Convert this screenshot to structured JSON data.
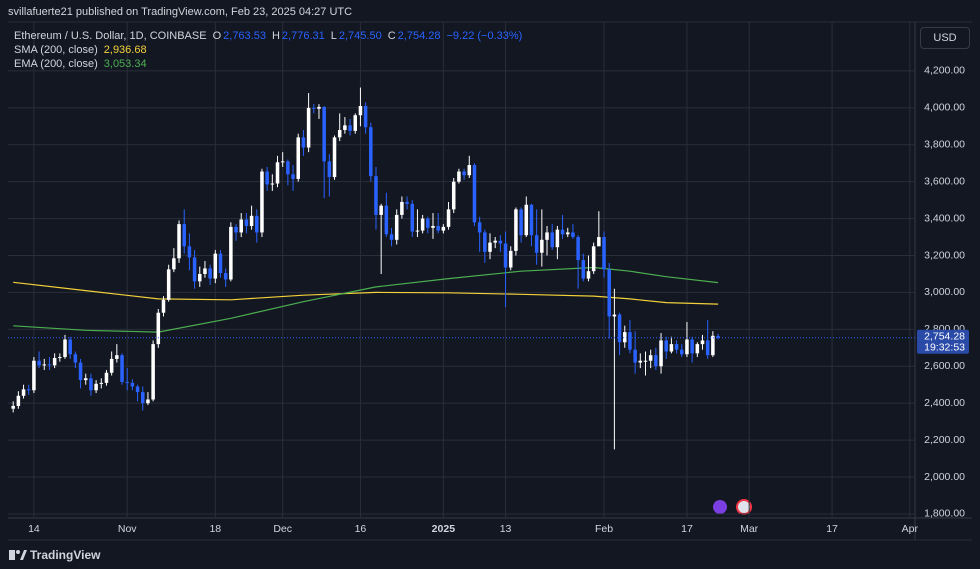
{
  "header": {
    "published": "svillafuerte21 published on TradingView.com, Feb 23, 2025 04:27 UTC",
    "symbol": "Ethereum / U.S. Dollar, 1D, COINBASE",
    "ohlc": [
      {
        "key": "O",
        "value": "2,763.53"
      },
      {
        "key": "H",
        "value": "2,776.31"
      },
      {
        "key": "L",
        "value": "2,745.50"
      },
      {
        "key": "C",
        "value": "2,754.28"
      }
    ],
    "change": "−9.22 (−0.33%)"
  },
  "currency": "USD",
  "brand": "TradingView",
  "chart_data": {
    "type": "candlestick",
    "up_color": "#ffffff",
    "down_color": "#2962ff",
    "grid": true,
    "x": [
      "2024-10-10",
      "2024-10-11",
      "2024-10-12",
      "2024-10-13",
      "2024-10-14",
      "2024-10-15",
      "2024-10-16",
      "2024-10-17",
      "2024-10-18",
      "2024-10-19",
      "2024-10-20",
      "2024-10-21",
      "2024-10-22",
      "2024-10-23",
      "2024-10-24",
      "2024-10-25",
      "2024-10-26",
      "2024-10-27",
      "2024-10-28",
      "2024-10-29",
      "2024-10-30",
      "2024-10-31",
      "2024-11-01",
      "2024-11-02",
      "2024-11-03",
      "2024-11-04",
      "2024-11-05",
      "2024-11-06",
      "2024-11-07",
      "2024-11-08",
      "2024-11-09",
      "2024-11-10",
      "2024-11-11",
      "2024-11-12",
      "2024-11-13",
      "2024-11-14",
      "2024-11-15",
      "2024-11-16",
      "2024-11-17",
      "2024-11-18",
      "2024-11-19",
      "2024-11-20",
      "2024-11-21",
      "2024-11-22",
      "2024-11-23",
      "2024-11-24",
      "2024-11-25",
      "2024-11-26",
      "2024-11-27",
      "2024-11-28",
      "2024-11-29",
      "2024-11-30",
      "2024-12-01",
      "2024-12-02",
      "2024-12-03",
      "2024-12-04",
      "2024-12-05",
      "2024-12-06",
      "2024-12-07",
      "2024-12-08",
      "2024-12-09",
      "2024-12-10",
      "2024-12-11",
      "2024-12-12",
      "2024-12-13",
      "2024-12-14",
      "2024-12-15",
      "2024-12-16",
      "2024-12-17",
      "2024-12-18",
      "2024-12-19",
      "2024-12-20",
      "2024-12-21",
      "2024-12-22",
      "2024-12-23",
      "2024-12-24",
      "2024-12-25",
      "2024-12-26",
      "2024-12-27",
      "2024-12-28",
      "2024-12-29",
      "2024-12-30",
      "2024-12-31",
      "2025-01-01",
      "2025-01-02",
      "2025-01-03",
      "2025-01-04",
      "2025-01-05",
      "2025-01-06",
      "2025-01-07",
      "2025-01-08",
      "2025-01-09",
      "2025-01-10",
      "2025-01-11",
      "2025-01-12",
      "2025-01-13",
      "2025-01-14",
      "2025-01-15",
      "2025-01-16",
      "2025-01-17",
      "2025-01-18",
      "2025-01-19",
      "2025-01-20",
      "2025-01-21",
      "2025-01-22",
      "2025-01-23",
      "2025-01-24",
      "2025-01-25",
      "2025-01-26",
      "2025-01-27",
      "2025-01-28",
      "2025-01-29",
      "2025-01-30",
      "2025-01-31",
      "2025-02-01",
      "2025-02-02",
      "2025-02-03",
      "2025-02-04",
      "2025-02-05",
      "2025-02-06",
      "2025-02-07",
      "2025-02-08",
      "2025-02-09",
      "2025-02-10",
      "2025-02-11",
      "2025-02-12",
      "2025-02-13",
      "2025-02-14",
      "2025-02-15",
      "2025-02-16",
      "2025-02-17",
      "2025-02-18",
      "2025-02-19",
      "2025-02-20",
      "2025-02-21",
      "2025-02-22",
      "2025-02-23"
    ],
    "open": [
      2370,
      2385,
      2440,
      2475,
      2470,
      2630,
      2605,
      2610,
      2605,
      2645,
      2650,
      2745,
      2665,
      2620,
      2525,
      2535,
      2470,
      2505,
      2510,
      2565,
      2640,
      2660,
      2515,
      2510,
      2490,
      2460,
      2400,
      2420,
      2720,
      2890,
      2960,
      3125,
      3185,
      3370,
      3250,
      3190,
      3060,
      3100,
      3130,
      3075,
      3210,
      3105,
      3070,
      3355,
      3325,
      3395,
      3360,
      3415,
      3325,
      3655,
      3585,
      3590,
      3705,
      3710,
      3640,
      3615,
      3840,
      3785,
      4000,
      3995,
      4005,
      3710,
      3625,
      3840,
      3880,
      3905,
      3875,
      3960,
      4010,
      3895,
      3630,
      3420,
      3470,
      3315,
      3285,
      3420,
      3490,
      3480,
      3330,
      3335,
      3400,
      3350,
      3360,
      3335,
      3355,
      3450,
      3600,
      3655,
      3635,
      3690,
      3380,
      3325,
      3220,
      3270,
      3280,
      3265,
      3135,
      3225,
      3450,
      3310,
      3475,
      3310,
      3215,
      3285,
      3325,
      3245,
      3340,
      3315,
      3325,
      3300,
      3175,
      3075,
      3115,
      3250,
      3300,
      3125,
      2870,
      2880,
      2730,
      2785,
      2690,
      2620,
      2630,
      2630,
      2660,
      2600,
      2740,
      2680,
      2720,
      2690,
      2665,
      2745,
      2670,
      2720,
      2740,
      2660,
      2763.53
    ],
    "high": [
      2410,
      2465,
      2500,
      2500,
      2650,
      2680,
      2640,
      2650,
      2670,
      2670,
      2770,
      2760,
      2680,
      2640,
      2560,
      2560,
      2525,
      2535,
      2580,
      2680,
      2720,
      2670,
      2590,
      2530,
      2500,
      2490,
      2460,
      2740,
      2910,
      2980,
      3150,
      3240,
      3390,
      3450,
      3320,
      3230,
      3140,
      3170,
      3150,
      3230,
      3230,
      3130,
      3380,
      3370,
      3430,
      3430,
      3470,
      3450,
      3670,
      3680,
      3640,
      3740,
      3760,
      3720,
      3690,
      3860,
      3880,
      4080,
      4020,
      4020,
      4010,
      3750,
      3850,
      3970,
      3950,
      3940,
      3970,
      4110,
      4030,
      3920,
      3680,
      3480,
      3540,
      3350,
      3450,
      3520,
      3520,
      3500,
      3450,
      3420,
      3410,
      3430,
      3430,
      3370,
      3490,
      3620,
      3670,
      3670,
      3740,
      3700,
      3410,
      3340,
      3320,
      3300,
      3310,
      3330,
      3250,
      3460,
      3460,
      3520,
      3480,
      3450,
      3450,
      3360,
      3370,
      3360,
      3420,
      3350,
      3370,
      3310,
      3210,
      3200,
      3270,
      3440,
      3330,
      3160,
      3020,
      2890,
      2820,
      2850,
      2790,
      2670,
      2680,
      2690,
      2700,
      2780,
      2760,
      2760,
      2740,
      2720,
      2840,
      2760,
      2730,
      2770,
      2850,
      2790,
      2776.31
    ],
    "low": [
      2350,
      2370,
      2425,
      2445,
      2455,
      2590,
      2580,
      2580,
      2590,
      2625,
      2640,
      2640,
      2590,
      2480,
      2500,
      2440,
      2455,
      2480,
      2495,
      2550,
      2620,
      2500,
      2470,
      2470,
      2410,
      2360,
      2390,
      2410,
      2700,
      2870,
      2950,
      3110,
      3160,
      3210,
      3120,
      3020,
      3030,
      3080,
      3040,
      3050,
      3080,
      3030,
      3060,
      3280,
      3300,
      3320,
      3340,
      3270,
      3300,
      3550,
      3550,
      3570,
      3680,
      3580,
      3550,
      3600,
      3740,
      3760,
      3970,
      3940,
      3510,
      3520,
      3610,
      3820,
      3860,
      3850,
      3860,
      3900,
      3860,
      3600,
      3340,
      3100,
      3300,
      3250,
      3260,
      3400,
      3450,
      3300,
      3300,
      3320,
      3320,
      3290,
      3320,
      3320,
      3340,
      3430,
      3590,
      3610,
      3620,
      3360,
      3220,
      3160,
      3180,
      3240,
      3220,
      2920,
      3120,
      3200,
      3270,
      3300,
      3250,
      3150,
      3140,
      3200,
      3230,
      3180,
      3290,
      3300,
      3290,
      3020,
      3060,
      3060,
      3100,
      3250,
      3080,
      2750,
      2150,
      2660,
      2700,
      2670,
      2560,
      2590,
      2550,
      2590,
      2580,
      2560,
      2640,
      2670,
      2670,
      2650,
      2650,
      2620,
      2650,
      2690,
      2640,
      2650,
      2745.5
    ],
    "close": [
      2385,
      2440,
      2475,
      2470,
      2630,
      2605,
      2610,
      2605,
      2645,
      2650,
      2745,
      2665,
      2620,
      2525,
      2535,
      2470,
      2505,
      2510,
      2565,
      2640,
      2660,
      2515,
      2510,
      2490,
      2460,
      2400,
      2420,
      2720,
      2890,
      2960,
      3125,
      3185,
      3370,
      3250,
      3190,
      3060,
      3100,
      3130,
      3075,
      3210,
      3105,
      3070,
      3355,
      3325,
      3395,
      3360,
      3415,
      3325,
      3655,
      3585,
      3590,
      3705,
      3710,
      3640,
      3615,
      3840,
      3785,
      4000,
      3995,
      4005,
      3710,
      3625,
      3840,
      3880,
      3905,
      3875,
      3960,
      4010,
      3895,
      3630,
      3420,
      3470,
      3315,
      3285,
      3420,
      3490,
      3480,
      3330,
      3335,
      3400,
      3350,
      3360,
      3335,
      3355,
      3450,
      3600,
      3655,
      3635,
      3690,
      3380,
      3325,
      3220,
      3270,
      3280,
      3265,
      3135,
      3225,
      3450,
      3310,
      3475,
      3310,
      3215,
      3285,
      3325,
      3245,
      3340,
      3315,
      3325,
      3300,
      3175,
      3075,
      3115,
      3250,
      3300,
      3125,
      2870,
      2880,
      2730,
      2785,
      2690,
      2620,
      2630,
      2630,
      2660,
      2600,
      2740,
      2680,
      2720,
      2690,
      2665,
      2745,
      2670,
      2720,
      2740,
      2660,
      2765,
      2754.28
    ],
    "series": [
      {
        "name": "SMA (200, close)",
        "value_label": "2,936.68",
        "color": "#f2d13a",
        "x": [
          "2024-10-10",
          "2024-10-24",
          "2024-11-07",
          "2024-11-21",
          "2024-12-05",
          "2024-12-19",
          "2025-01-02",
          "2025-01-16",
          "2025-01-30",
          "2025-02-06",
          "2025-02-13",
          "2025-02-23"
        ],
        "values": [
          3055,
          3010,
          2965,
          2960,
          2985,
          3000,
          2998,
          2990,
          2980,
          2965,
          2945,
          2936.68
        ]
      },
      {
        "name": "EMA (200, close)",
        "value_label": "3,053.34",
        "color": "#4caf50",
        "x": [
          "2024-10-10",
          "2024-10-24",
          "2024-11-07",
          "2024-11-21",
          "2024-12-05",
          "2024-12-19",
          "2025-01-02",
          "2025-01-16",
          "2025-01-30",
          "2025-02-06",
          "2025-02-13",
          "2025-02-23"
        ],
        "values": [
          2819,
          2795,
          2785,
          2860,
          2950,
          3030,
          3075,
          3115,
          3135,
          3115,
          3085,
          3053.34
        ]
      }
    ],
    "last_price": {
      "label": "2,754.28",
      "countdown": "19:32:53"
    },
    "ylim": [
      1778,
      4465
    ],
    "yticks": [
      {
        "value": 1800,
        "label": "1,800.00"
      },
      {
        "value": 2000,
        "label": "2,000.00"
      },
      {
        "value": 2200,
        "label": "2,200.00"
      },
      {
        "value": 2400,
        "label": "2,400.00"
      },
      {
        "value": 2600,
        "label": "2,600.00"
      },
      {
        "value": 2800,
        "label": "2,800.00"
      },
      {
        "value": 3000,
        "label": "3,000.00"
      },
      {
        "value": 3200,
        "label": "3,200.00"
      },
      {
        "value": 3400,
        "label": "3,400.00"
      },
      {
        "value": 3600,
        "label": "3,600.00"
      },
      {
        "value": 3800,
        "label": "3,800.00"
      },
      {
        "value": 4000,
        "label": "4,000.00"
      },
      {
        "value": 4200,
        "label": "4,200.00"
      }
    ],
    "xlim": [
      "2024-10-09",
      "2025-04-02"
    ],
    "xticks": [
      {
        "value": "2024-10-14",
        "label": "14"
      },
      {
        "value": "2024-11-01",
        "label": "Nov"
      },
      {
        "value": "2024-11-18",
        "label": "18"
      },
      {
        "value": "2024-12-01",
        "label": "Dec"
      },
      {
        "value": "2024-12-16",
        "label": "16"
      },
      {
        "value": "2025-01-01",
        "label": "2025"
      },
      {
        "value": "2025-01-13",
        "label": "13"
      },
      {
        "value": "2025-02-01",
        "label": "Feb"
      },
      {
        "value": "2025-02-17",
        "label": "17"
      },
      {
        "value": "2025-03-01",
        "label": "Mar"
      },
      {
        "value": "2025-03-17",
        "label": "17"
      },
      {
        "value": "2025-04-01",
        "label": "Apr"
      }
    ]
  }
}
